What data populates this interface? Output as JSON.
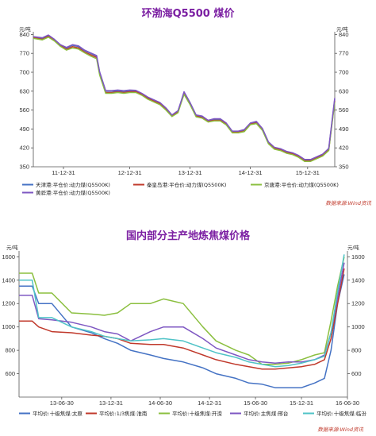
{
  "chart_data": [
    {
      "type": "line",
      "title": "环渤海Q5500 煤价",
      "unit_left": "元/吨",
      "unit_right": "元/吨",
      "ylim": [
        350,
        850
      ],
      "yticks": [
        350,
        420,
        490,
        560,
        630,
        700,
        770,
        840
      ],
      "xlim": [
        0,
        100
      ],
      "xticks": [
        {
          "x": 10,
          "label": "11-12-31"
        },
        {
          "x": 32,
          "label": "12-12-31"
        },
        {
          "x": 52,
          "label": "13-12-31"
        },
        {
          "x": 72,
          "label": "14-12-31"
        },
        {
          "x": 91,
          "label": "15-12-31"
        }
      ],
      "legend_position": "bottom",
      "source": "数据来源:Wind资讯",
      "series": [
        {
          "name": "天津港:平仓价:动力煤(Q5500K)",
          "color": "#4472c4",
          "x": [
            0,
            3,
            5,
            7,
            9,
            11,
            13,
            15,
            17,
            19,
            21,
            22,
            24,
            26,
            28,
            30,
            32,
            34,
            36,
            38,
            40,
            42,
            44,
            46,
            48,
            49,
            50,
            52,
            54,
            56,
            58,
            60,
            62,
            64,
            66,
            68,
            70,
            72,
            74,
            76,
            78,
            80,
            82,
            84,
            86,
            88,
            90,
            92,
            94,
            96,
            98,
            100
          ],
          "y": [
            830,
            825,
            835,
            820,
            800,
            790,
            800,
            795,
            780,
            770,
            760,
            700,
            630,
            630,
            630,
            628,
            630,
            630,
            620,
            605,
            595,
            585,
            565,
            540,
            555,
            590,
            625,
            585,
            540,
            535,
            520,
            525,
            525,
            510,
            480,
            480,
            485,
            510,
            515,
            490,
            440,
            420,
            415,
            405,
            400,
            390,
            375,
            375,
            385,
            395,
            415,
            600
          ]
        },
        {
          "name": "秦皇岛港:平仓价:动力煤(Q5500K)",
          "color": "#c0392b",
          "x": [
            0,
            3,
            5,
            7,
            9,
            11,
            13,
            15,
            17,
            19,
            21,
            22,
            24,
            26,
            28,
            30,
            32,
            34,
            36,
            38,
            40,
            42,
            44,
            46,
            48,
            49,
            50,
            52,
            54,
            56,
            58,
            60,
            62,
            64,
            66,
            68,
            70,
            72,
            74,
            76,
            78,
            80,
            82,
            84,
            86,
            88,
            90,
            92,
            94,
            96,
            98,
            100
          ],
          "y": [
            828,
            822,
            833,
            818,
            798,
            785,
            795,
            790,
            775,
            765,
            755,
            695,
            625,
            625,
            627,
            625,
            628,
            628,
            618,
            603,
            593,
            583,
            562,
            538,
            552,
            588,
            622,
            582,
            538,
            532,
            518,
            522,
            522,
            508,
            478,
            478,
            482,
            508,
            512,
            488,
            438,
            418,
            412,
            402,
            398,
            388,
            372,
            372,
            382,
            392,
            412,
            595
          ]
        },
        {
          "name": "京唐港:平仓价:动力煤(Q5500K)",
          "color": "#8bbf3f",
          "x": [
            0,
            3,
            5,
            7,
            9,
            11,
            13,
            15,
            17,
            19,
            21,
            22,
            24,
            26,
            28,
            30,
            32,
            34,
            36,
            38,
            40,
            42,
            44,
            46,
            48,
            49,
            50,
            52,
            54,
            56,
            58,
            60,
            62,
            64,
            66,
            68,
            70,
            72,
            74,
            76,
            78,
            80,
            82,
            84,
            86,
            88,
            90,
            92,
            94,
            96,
            98,
            100
          ],
          "y": [
            826,
            820,
            830,
            816,
            796,
            782,
            790,
            786,
            772,
            760,
            750,
            690,
            622,
            622,
            625,
            622,
            625,
            625,
            615,
            600,
            590,
            580,
            560,
            536,
            550,
            585,
            618,
            580,
            535,
            530,
            516,
            520,
            520,
            505,
            476,
            476,
            480,
            506,
            510,
            485,
            435,
            415,
            410,
            400,
            395,
            385,
            370,
            370,
            380,
            390,
            410,
            590
          ]
        },
        {
          "name": "黄骅港:平仓价:动力煤(Q5500K)",
          "color": "#7e57c2",
          "x": [
            0,
            3,
            5,
            7,
            9,
            11,
            13,
            15,
            17,
            19,
            21,
            22,
            24,
            26,
            28,
            30,
            32,
            34,
            36,
            38,
            40,
            42,
            44,
            46,
            48,
            49,
            50,
            52,
            54,
            56,
            58,
            60,
            62,
            64,
            66,
            68,
            70,
            72,
            74,
            76,
            78,
            80,
            82,
            84,
            86,
            88,
            90,
            92,
            94,
            96,
            98,
            100
          ],
          "y": [
            832,
            828,
            838,
            822,
            802,
            792,
            802,
            798,
            782,
            772,
            762,
            702,
            632,
            632,
            634,
            632,
            634,
            633,
            622,
            608,
            598,
            588,
            568,
            542,
            558,
            592,
            628,
            588,
            542,
            538,
            522,
            528,
            528,
            512,
            482,
            482,
            488,
            512,
            518,
            492,
            442,
            422,
            417,
            407,
            402,
            392,
            377,
            377,
            387,
            397,
            418,
            605
          ]
        }
      ]
    },
    {
      "type": "line",
      "title": "国内部分主产地炼焦煤价格",
      "unit_left": "元/吨",
      "unit_right": "元/吨",
      "ylim": [
        400,
        1650
      ],
      "yticks": [
        600,
        800,
        1000,
        1200,
        1400,
        1600
      ],
      "xlim": [
        0,
        100
      ],
      "xticks": [
        {
          "x": 13,
          "label": "13-06-30"
        },
        {
          "x": 28,
          "label": "13-12-31"
        },
        {
          "x": 43,
          "label": "14-06-30"
        },
        {
          "x": 58,
          "label": "14-12-31"
        },
        {
          "x": 72,
          "label": "15-06-30"
        },
        {
          "x": 86,
          "label": "15-12-31"
        },
        {
          "x": 100,
          "label": "16-06-30"
        }
      ],
      "legend_position": "bottom",
      "source": "数据来源:Wind资讯",
      "series": [
        {
          "name": "平均价:十级焦煤:太原",
          "color": "#4472c4",
          "x": [
            0,
            4,
            6,
            10,
            16,
            22,
            26,
            30,
            34,
            40,
            44,
            50,
            56,
            60,
            66,
            70,
            74,
            78,
            82,
            86,
            90,
            93,
            95,
            97,
            99
          ],
          "y": [
            1350,
            1350,
            1200,
            1200,
            1000,
            950,
            900,
            860,
            800,
            760,
            730,
            700,
            650,
            600,
            560,
            520,
            510,
            480,
            480,
            480,
            520,
            560,
            800,
            1200,
            1450
          ]
        },
        {
          "name": "平均价:1/3焦煤:淮南",
          "color": "#c0392b",
          "x": [
            0,
            4,
            6,
            10,
            16,
            22,
            26,
            30,
            34,
            40,
            44,
            50,
            56,
            60,
            66,
            70,
            74,
            78,
            82,
            86,
            90,
            93,
            95,
            97,
            99
          ],
          "y": [
            1050,
            1050,
            1000,
            960,
            950,
            930,
            920,
            900,
            860,
            850,
            850,
            820,
            760,
            720,
            680,
            660,
            640,
            640,
            650,
            660,
            680,
            720,
            900,
            1200,
            1500
          ]
        },
        {
          "name": "平均价:十级焦煤:开滦",
          "color": "#8bbf3f",
          "x": [
            0,
            4,
            6,
            10,
            16,
            22,
            26,
            30,
            34,
            40,
            44,
            50,
            56,
            60,
            66,
            70,
            74,
            78,
            82,
            86,
            90,
            93,
            95,
            97,
            99
          ],
          "y": [
            1460,
            1460,
            1290,
            1290,
            1120,
            1110,
            1100,
            1120,
            1200,
            1200,
            1240,
            1200,
            1000,
            880,
            800,
            760,
            680,
            680,
            690,
            720,
            760,
            780,
            1050,
            1350,
            1600
          ]
        },
        {
          "name": "平均价:主焦煤:邢台",
          "color": "#7e57c2",
          "x": [
            0,
            4,
            6,
            10,
            16,
            22,
            26,
            30,
            34,
            40,
            44,
            50,
            56,
            60,
            66,
            70,
            74,
            78,
            82,
            86,
            90,
            93,
            95,
            97,
            99
          ],
          "y": [
            1270,
            1270,
            1070,
            1060,
            1040,
            1000,
            960,
            940,
            880,
            960,
            1000,
            1000,
            900,
            820,
            760,
            720,
            700,
            690,
            700,
            700,
            720,
            760,
            950,
            1250,
            1550
          ]
        },
        {
          "name": "平均价:十级焦煤:临汾",
          "color": "#4fc3c7",
          "x": [
            0,
            4,
            6,
            10,
            16,
            22,
            26,
            30,
            34,
            40,
            44,
            50,
            56,
            60,
            66,
            70,
            74,
            78,
            82,
            86,
            90,
            93,
            95,
            97,
            99
          ],
          "y": [
            1400,
            1400,
            1080,
            1080,
            1000,
            960,
            920,
            900,
            880,
            890,
            900,
            880,
            820,
            780,
            740,
            700,
            680,
            660,
            670,
            690,
            720,
            750,
            950,
            1300,
            1620
          ]
        }
      ]
    }
  ]
}
